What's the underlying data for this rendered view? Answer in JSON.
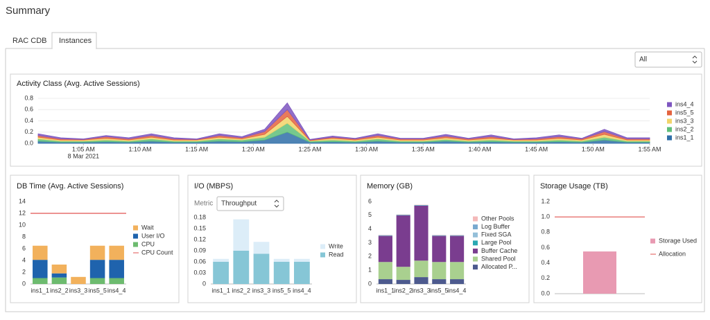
{
  "page": {
    "title": "Summary",
    "tabs": [
      "RAC CDB",
      "Instances"
    ],
    "filter": "All"
  },
  "chart_data": [
    {
      "type": "area",
      "stacked": true,
      "title": "Activity Class (Avg. Active Sessions)",
      "date": "8 Mar 2021",
      "grid": true,
      "x": [
        "1:01 AM",
        "1:03 AM",
        "1:05 AM",
        "1:07 AM",
        "1:09 AM",
        "1:11 AM",
        "1:13 AM",
        "1:15 AM",
        "1:17 AM",
        "1:19 AM",
        "1:21 AM",
        "1:23 AM",
        "1:25 AM",
        "1:27 AM",
        "1:29 AM",
        "1:31 AM",
        "1:33 AM",
        "1:35 AM",
        "1:37 AM",
        "1:39 AM",
        "1:41 AM",
        "1:43 AM",
        "1:45 AM",
        "1:47 AM",
        "1:49 AM",
        "1:51 AM",
        "1:53 AM",
        "1:55 AM"
      ],
      "xticks": [
        "1:05 AM",
        "1:10 AM",
        "1:15 AM",
        "1:20 AM",
        "1:25 AM",
        "1:30 AM",
        "1:35 AM",
        "1:40 AM",
        "1:45 AM",
        "1:50 AM",
        "1:55 AM"
      ],
      "ylim": [
        0,
        0.8
      ],
      "yticks": [
        {
          "value": 0,
          "label": "0.0"
        },
        0.2,
        0.4,
        0.6,
        0.8
      ],
      "series": [
        {
          "name": "ins1_1",
          "color": "#2f6fa8",
          "values": [
            0.04,
            0.02,
            0.02,
            0.03,
            0.02,
            0.04,
            0.02,
            0.02,
            0.04,
            0.03,
            0.06,
            0.2,
            0.02,
            0.03,
            0.02,
            0.04,
            0.02,
            0.02,
            0.04,
            0.02,
            0.03,
            0.02,
            0.02,
            0.03,
            0.02,
            0.06,
            0.02,
            0.02
          ]
        },
        {
          "name": "ins2_2",
          "color": "#5fbf7a",
          "values": [
            0.04,
            0.02,
            0.02,
            0.03,
            0.02,
            0.04,
            0.02,
            0.02,
            0.04,
            0.03,
            0.05,
            0.16,
            0.02,
            0.03,
            0.02,
            0.04,
            0.02,
            0.02,
            0.03,
            0.02,
            0.03,
            0.02,
            0.02,
            0.03,
            0.02,
            0.05,
            0.02,
            0.02
          ]
        },
        {
          "name": "ins3_3",
          "color": "#f1d46a",
          "values": [
            0.03,
            0.02,
            0.02,
            0.03,
            0.02,
            0.03,
            0.02,
            0.02,
            0.03,
            0.02,
            0.05,
            0.12,
            0.01,
            0.03,
            0.02,
            0.03,
            0.02,
            0.02,
            0.03,
            0.02,
            0.03,
            0.02,
            0.02,
            0.03,
            0.02,
            0.05,
            0.02,
            0.02
          ]
        },
        {
          "name": "ins5_5",
          "color": "#e4633f",
          "values": [
            0.03,
            0.02,
            0.01,
            0.03,
            0.02,
            0.03,
            0.02,
            0.01,
            0.03,
            0.02,
            0.05,
            0.12,
            0.01,
            0.02,
            0.02,
            0.03,
            0.02,
            0.02,
            0.03,
            0.02,
            0.03,
            0.01,
            0.02,
            0.03,
            0.02,
            0.05,
            0.02,
            0.02
          ]
        },
        {
          "name": "ins4_4",
          "color": "#7e56c0",
          "values": [
            0.03,
            0.02,
            0.01,
            0.02,
            0.02,
            0.03,
            0.02,
            0.01,
            0.03,
            0.02,
            0.04,
            0.12,
            0.01,
            0.02,
            0.01,
            0.03,
            0.01,
            0.01,
            0.03,
            0.01,
            0.03,
            0.01,
            0.02,
            0.03,
            0.01,
            0.04,
            0.02,
            0.02
          ]
        }
      ]
    },
    {
      "type": "bar",
      "stacked": true,
      "title": "DB Time (Avg. Active Sessions)",
      "categories": [
        "ins1_1",
        "ins2_2",
        "ins3_3",
        "ins5_5",
        "ins4_4"
      ],
      "ylim": [
        0,
        14
      ],
      "yticks": [
        0,
        2,
        4,
        6,
        8,
        10,
        12,
        14
      ],
      "series": [
        {
          "name": "CPU",
          "color": "#6dbb6f",
          "values": [
            1.0,
            1.1,
            0,
            1.0,
            1.0
          ]
        },
        {
          "name": "User I/O",
          "color": "#1f63ad",
          "values": [
            3.1,
            0.7,
            0,
            3.1,
            3.1
          ]
        },
        {
          "name": "Wait",
          "color": "#f2b15c",
          "values": [
            2.4,
            1.5,
            1.2,
            2.4,
            2.4
          ]
        }
      ],
      "reference_lines": [
        {
          "name": "CPU Count",
          "value": 12,
          "color": "#e0524f"
        }
      ]
    },
    {
      "type": "bar",
      "stacked": true,
      "title": "I/O (MBPS)",
      "metric_label": "Metric",
      "metric": "Throughput",
      "categories": [
        "ins1_1",
        "ins2_2",
        "ins3_3",
        "ins5_5",
        "ins4_4"
      ],
      "ylim": [
        0,
        0.18
      ],
      "yticks": [
        0,
        0.03,
        0.06,
        0.09,
        0.12,
        0.15,
        0.18
      ],
      "series": [
        {
          "name": "Read",
          "color": "#86c6d6",
          "values": [
            0.06,
            0.09,
            0.082,
            0.06,
            0.06
          ]
        },
        {
          "name": "Write",
          "color": "#dcedf8",
          "values": [
            0.008,
            0.085,
            0.032,
            0.008,
            0.008
          ]
        }
      ]
    },
    {
      "type": "bar",
      "stacked": true,
      "title": "Memory (GB)",
      "categories": [
        "ins1_1",
        "ins2_2",
        "ins3_3",
        "ins5_5",
        "ins4_4"
      ],
      "ylim": [
        0,
        6
      ],
      "yticks": [
        0,
        1,
        2,
        3,
        4,
        5,
        6
      ],
      "series": [
        {
          "name": "Allocated P...",
          "color": "#4d5a8e",
          "values": [
            0.35,
            0.3,
            0.5,
            0.35,
            0.35
          ]
        },
        {
          "name": "Shared Pool",
          "color": "#a9d08f",
          "values": [
            1.25,
            0.95,
            1.2,
            1.25,
            1.25
          ]
        },
        {
          "name": "Buffer Cache",
          "color": "#7a3d8f",
          "values": [
            1.9,
            3.75,
            4.0,
            1.9,
            1.9
          ]
        },
        {
          "name": "Large Pool",
          "color": "#2aa8b3",
          "values": [
            0.02,
            0.02,
            0.02,
            0.02,
            0.02
          ]
        },
        {
          "name": "Fixed SGA",
          "color": "#94bfd9",
          "values": [
            0.01,
            0.01,
            0.01,
            0.01,
            0.01
          ]
        },
        {
          "name": "Log Buffer",
          "color": "#78a9cf",
          "values": [
            0.02,
            0.02,
            0.02,
            0.02,
            0.02
          ]
        },
        {
          "name": "Other Pools",
          "color": "#f4b9b9",
          "values": [
            0.02,
            0.02,
            0.02,
            0.02,
            0.02
          ]
        }
      ]
    },
    {
      "type": "bar",
      "stacked": true,
      "title": "Storage Usage (TB)",
      "categories": [
        null
      ],
      "ylim": [
        0,
        1.2
      ],
      "yticks": [
        {
          "value": 0,
          "label": "0.0"
        },
        0.2,
        0.4,
        0.6,
        0.8,
        {
          "value": 1,
          "label": "1.0"
        },
        1.2
      ],
      "series": [
        {
          "name": "Storage Used",
          "color": "#e89ab2",
          "values": [
            0.55
          ]
        }
      ],
      "reference_lines": [
        {
          "name": "Allocation",
          "value": 1.0,
          "color": "#e0524f"
        }
      ]
    }
  ]
}
